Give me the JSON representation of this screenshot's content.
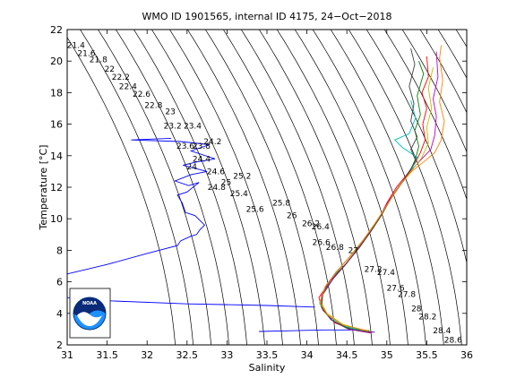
{
  "chart_data": {
    "type": "line",
    "title": "WMO ID 1901565, internal ID 4175, 24−Oct−2018",
    "xlabel": "Salinity",
    "ylabel": "Temperature [°C]",
    "xlim": [
      31,
      36
    ],
    "ylim": [
      2,
      22
    ],
    "xticks": [
      "31",
      "31.5",
      "32",
      "32.5",
      "33",
      "33.5",
      "34",
      "34.5",
      "35",
      "35.5",
      "36"
    ],
    "yticks": [
      "2",
      "4",
      "6",
      "8",
      "10",
      "12",
      "14",
      "16",
      "18",
      "20",
      "22"
    ],
    "density_isolines": {
      "labels": [
        "21.4",
        "21.6",
        "21.8",
        "22",
        "22.2",
        "22.4",
        "22.6",
        "22.8",
        "23",
        "23.2",
        "23.4",
        "23.6",
        "23.8",
        "24",
        "24.2",
        "24.4",
        "24.6",
        "24.8",
        "25",
        "25.2",
        "25.4",
        "25.6",
        "25.8",
        "26",
        "26.2",
        "26.4",
        "26.6",
        "26.8",
        "27",
        "27.2",
        "27.4",
        "27.6",
        "27.8",
        "28",
        "28.2",
        "28.4",
        "28.6"
      ],
      "label_points": [
        [
          31.11,
          21.0
        ],
        [
          31.24,
          20.5
        ],
        [
          31.39,
          20.1
        ],
        [
          31.53,
          19.5
        ],
        [
          31.67,
          19.0
        ],
        [
          31.76,
          18.4
        ],
        [
          31.93,
          17.9
        ],
        [
          32.08,
          17.2
        ],
        [
          32.29,
          16.8
        ],
        [
          32.32,
          15.9
        ],
        [
          32.57,
          15.9
        ],
        [
          32.48,
          14.6
        ],
        [
          32.68,
          14.6
        ],
        [
          32.56,
          13.3
        ],
        [
          32.82,
          14.9
        ],
        [
          32.68,
          13.8
        ],
        [
          32.86,
          13.0
        ],
        [
          32.87,
          12.0
        ],
        [
          32.99,
          12.3
        ],
        [
          33.19,
          12.7
        ],
        [
          33.15,
          11.6
        ],
        [
          33.35,
          10.6
        ],
        [
          33.68,
          11.0
        ],
        [
          33.81,
          10.2
        ],
        [
          34.05,
          9.7
        ],
        [
          34.17,
          9.5
        ],
        [
          34.18,
          8.5
        ],
        [
          34.35,
          8.2
        ],
        [
          34.58,
          8.0
        ],
        [
          34.83,
          6.8
        ],
        [
          34.99,
          6.6
        ],
        [
          35.11,
          5.6
        ],
        [
          35.25,
          5.2
        ],
        [
          35.37,
          4.3
        ],
        [
          35.51,
          3.8
        ],
        [
          35.69,
          2.9
        ],
        [
          35.83,
          2.3
        ]
      ]
    },
    "series": [
      {
        "color": "#0000ff",
        "points": [
          [
            31.0,
            6.5
          ],
          [
            31.5,
            7.1
          ],
          [
            32.0,
            7.8
          ],
          [
            32.38,
            8.3
          ],
          [
            32.42,
            8.6
          ],
          [
            32.55,
            8.9
          ],
          [
            32.62,
            9.0
          ],
          [
            32.66,
            9.3
          ],
          [
            32.72,
            9.6
          ],
          [
            32.6,
            10.2
          ],
          [
            32.48,
            10.4
          ],
          [
            32.44,
            11.0
          ],
          [
            32.38,
            11.5
          ],
          [
            32.5,
            11.7
          ],
          [
            32.65,
            12.3
          ],
          [
            32.52,
            12.1
          ],
          [
            32.35,
            12.4
          ],
          [
            32.55,
            12.8
          ],
          [
            32.75,
            13.0
          ],
          [
            32.45,
            13.4
          ],
          [
            32.62,
            13.6
          ],
          [
            32.85,
            13.8
          ],
          [
            32.55,
            14.3
          ],
          [
            32.78,
            14.7
          ],
          [
            32.42,
            14.9
          ],
          [
            31.8,
            15.0
          ],
          [
            32.3,
            15.1
          ]
        ]
      },
      {
        "color": "#0000ff",
        "points": [
          [
            31.0,
            5.0
          ],
          [
            31.5,
            4.8
          ],
          [
            32.5,
            4.6
          ],
          [
            33.5,
            4.5
          ],
          [
            34.1,
            4.4
          ]
        ]
      },
      {
        "color": "#0000ff",
        "points": [
          [
            33.4,
            2.85
          ],
          [
            33.8,
            2.9
          ],
          [
            34.2,
            2.95
          ],
          [
            34.6,
            2.95
          ],
          [
            34.85,
            2.8
          ]
        ]
      },
      {
        "color": "#ff0000",
        "points": [
          [
            34.82,
            2.8
          ],
          [
            34.55,
            3.0
          ],
          [
            34.35,
            3.4
          ],
          [
            34.2,
            4.2
          ],
          [
            34.15,
            5.0
          ],
          [
            34.28,
            6.0
          ],
          [
            34.47,
            7.0
          ],
          [
            34.62,
            8.0
          ],
          [
            34.76,
            9.0
          ],
          [
            34.9,
            10.0
          ],
          [
            35.0,
            11.0
          ],
          [
            35.12,
            12.0
          ],
          [
            35.25,
            12.8
          ],
          [
            35.35,
            13.5
          ],
          [
            35.42,
            14.2
          ],
          [
            35.48,
            15.0
          ],
          [
            35.45,
            16.0
          ],
          [
            35.5,
            17.0
          ],
          [
            35.44,
            18.0
          ],
          [
            35.52,
            19.0
          ],
          [
            35.5,
            20.3
          ]
        ]
      },
      {
        "color": "#008000",
        "points": [
          [
            34.78,
            2.9
          ],
          [
            34.5,
            3.1
          ],
          [
            34.3,
            3.6
          ],
          [
            34.18,
            4.4
          ],
          [
            34.2,
            5.3
          ],
          [
            34.32,
            6.3
          ],
          [
            34.5,
            7.2
          ],
          [
            34.66,
            8.2
          ],
          [
            34.8,
            9.2
          ],
          [
            34.93,
            10.2
          ],
          [
            35.04,
            11.2
          ],
          [
            35.16,
            12.1
          ],
          [
            35.28,
            12.9
          ],
          [
            35.36,
            13.8
          ],
          [
            35.4,
            14.6
          ],
          [
            35.35,
            15.6
          ],
          [
            35.42,
            16.6
          ],
          [
            35.38,
            17.8
          ],
          [
            35.46,
            19.2
          ],
          [
            35.4,
            20.0
          ]
        ]
      },
      {
        "color": "#00bfbf",
        "points": [
          [
            34.75,
            2.8
          ],
          [
            34.48,
            3.2
          ],
          [
            34.27,
            3.8
          ],
          [
            34.16,
            4.6
          ],
          [
            34.22,
            5.6
          ],
          [
            34.36,
            6.6
          ],
          [
            34.52,
            7.5
          ],
          [
            34.69,
            8.5
          ],
          [
            34.83,
            9.5
          ],
          [
            34.96,
            10.5
          ],
          [
            35.07,
            11.4
          ],
          [
            35.18,
            12.2
          ],
          [
            35.3,
            13.0
          ],
          [
            35.38,
            13.9
          ],
          [
            35.2,
            14.5
          ],
          [
            35.1,
            15.0
          ],
          [
            35.28,
            15.4
          ],
          [
            35.36,
            16.4
          ],
          [
            35.3,
            17.5
          ]
        ]
      },
      {
        "color": "#bf00bf",
        "points": [
          [
            34.8,
            2.75
          ],
          [
            34.52,
            3.0
          ],
          [
            34.33,
            3.5
          ],
          [
            34.19,
            4.3
          ],
          [
            34.18,
            5.1
          ],
          [
            34.3,
            6.1
          ],
          [
            34.48,
            7.1
          ],
          [
            34.64,
            8.1
          ],
          [
            34.78,
            9.1
          ],
          [
            34.91,
            10.1
          ],
          [
            35.02,
            11.1
          ],
          [
            35.14,
            12.0
          ],
          [
            35.26,
            12.8
          ],
          [
            35.4,
            13.6
          ],
          [
            35.55,
            14.4
          ],
          [
            35.6,
            15.3
          ],
          [
            35.62,
            16.5
          ],
          [
            35.58,
            17.6
          ],
          [
            35.64,
            19.0
          ],
          [
            35.62,
            20.6
          ]
        ]
      },
      {
        "color": "#bfbf00",
        "points": [
          [
            34.77,
            2.85
          ],
          [
            34.45,
            3.3
          ],
          [
            34.25,
            4.0
          ],
          [
            34.17,
            4.8
          ],
          [
            34.24,
            5.8
          ],
          [
            34.4,
            6.8
          ],
          [
            34.55,
            7.7
          ],
          [
            34.71,
            8.7
          ],
          [
            34.85,
            9.7
          ],
          [
            34.98,
            10.7
          ],
          [
            35.09,
            11.6
          ],
          [
            35.2,
            12.4
          ],
          [
            35.32,
            13.1
          ],
          [
            35.44,
            13.9
          ],
          [
            35.52,
            14.8
          ],
          [
            35.5,
            15.8
          ],
          [
            35.56,
            17.0
          ],
          [
            35.52,
            18.3
          ],
          [
            35.58,
            19.6
          ]
        ]
      },
      {
        "color": "#404040",
        "points": [
          [
            34.79,
            2.8
          ],
          [
            34.5,
            3.05
          ],
          [
            34.3,
            3.6
          ],
          [
            34.18,
            4.4
          ],
          [
            34.2,
            5.2
          ],
          [
            34.33,
            6.2
          ],
          [
            34.5,
            7.2
          ],
          [
            34.66,
            8.2
          ],
          [
            34.8,
            9.2
          ],
          [
            34.93,
            10.2
          ],
          [
            35.04,
            11.2
          ],
          [
            35.16,
            12.1
          ],
          [
            35.27,
            12.9
          ],
          [
            35.36,
            13.7
          ],
          [
            35.3,
            14.4
          ],
          [
            35.38,
            15.2
          ],
          [
            35.3,
            16.2
          ],
          [
            35.34,
            17.3
          ],
          [
            35.28,
            18.4
          ],
          [
            35.35,
            19.8
          ],
          [
            35.3,
            20.8
          ]
        ]
      },
      {
        "color": "#ff8000",
        "points": [
          [
            34.76,
            2.9
          ],
          [
            34.46,
            3.25
          ],
          [
            34.26,
            3.9
          ],
          [
            34.16,
            4.7
          ],
          [
            34.23,
            5.7
          ],
          [
            34.38,
            6.7
          ],
          [
            34.54,
            7.6
          ],
          [
            34.7,
            8.6
          ],
          [
            34.84,
            9.6
          ],
          [
            34.97,
            10.6
          ],
          [
            35.08,
            11.5
          ],
          [
            35.19,
            12.3
          ],
          [
            35.31,
            13.0
          ],
          [
            35.46,
            13.6
          ],
          [
            35.6,
            14.2
          ],
          [
            35.68,
            15.0
          ],
          [
            35.72,
            16.2
          ],
          [
            35.66,
            17.4
          ],
          [
            35.7,
            18.8
          ],
          [
            35.66,
            20.2
          ],
          [
            35.68,
            21.0
          ]
        ]
      }
    ]
  },
  "logo": {
    "text": "NOAA"
  }
}
